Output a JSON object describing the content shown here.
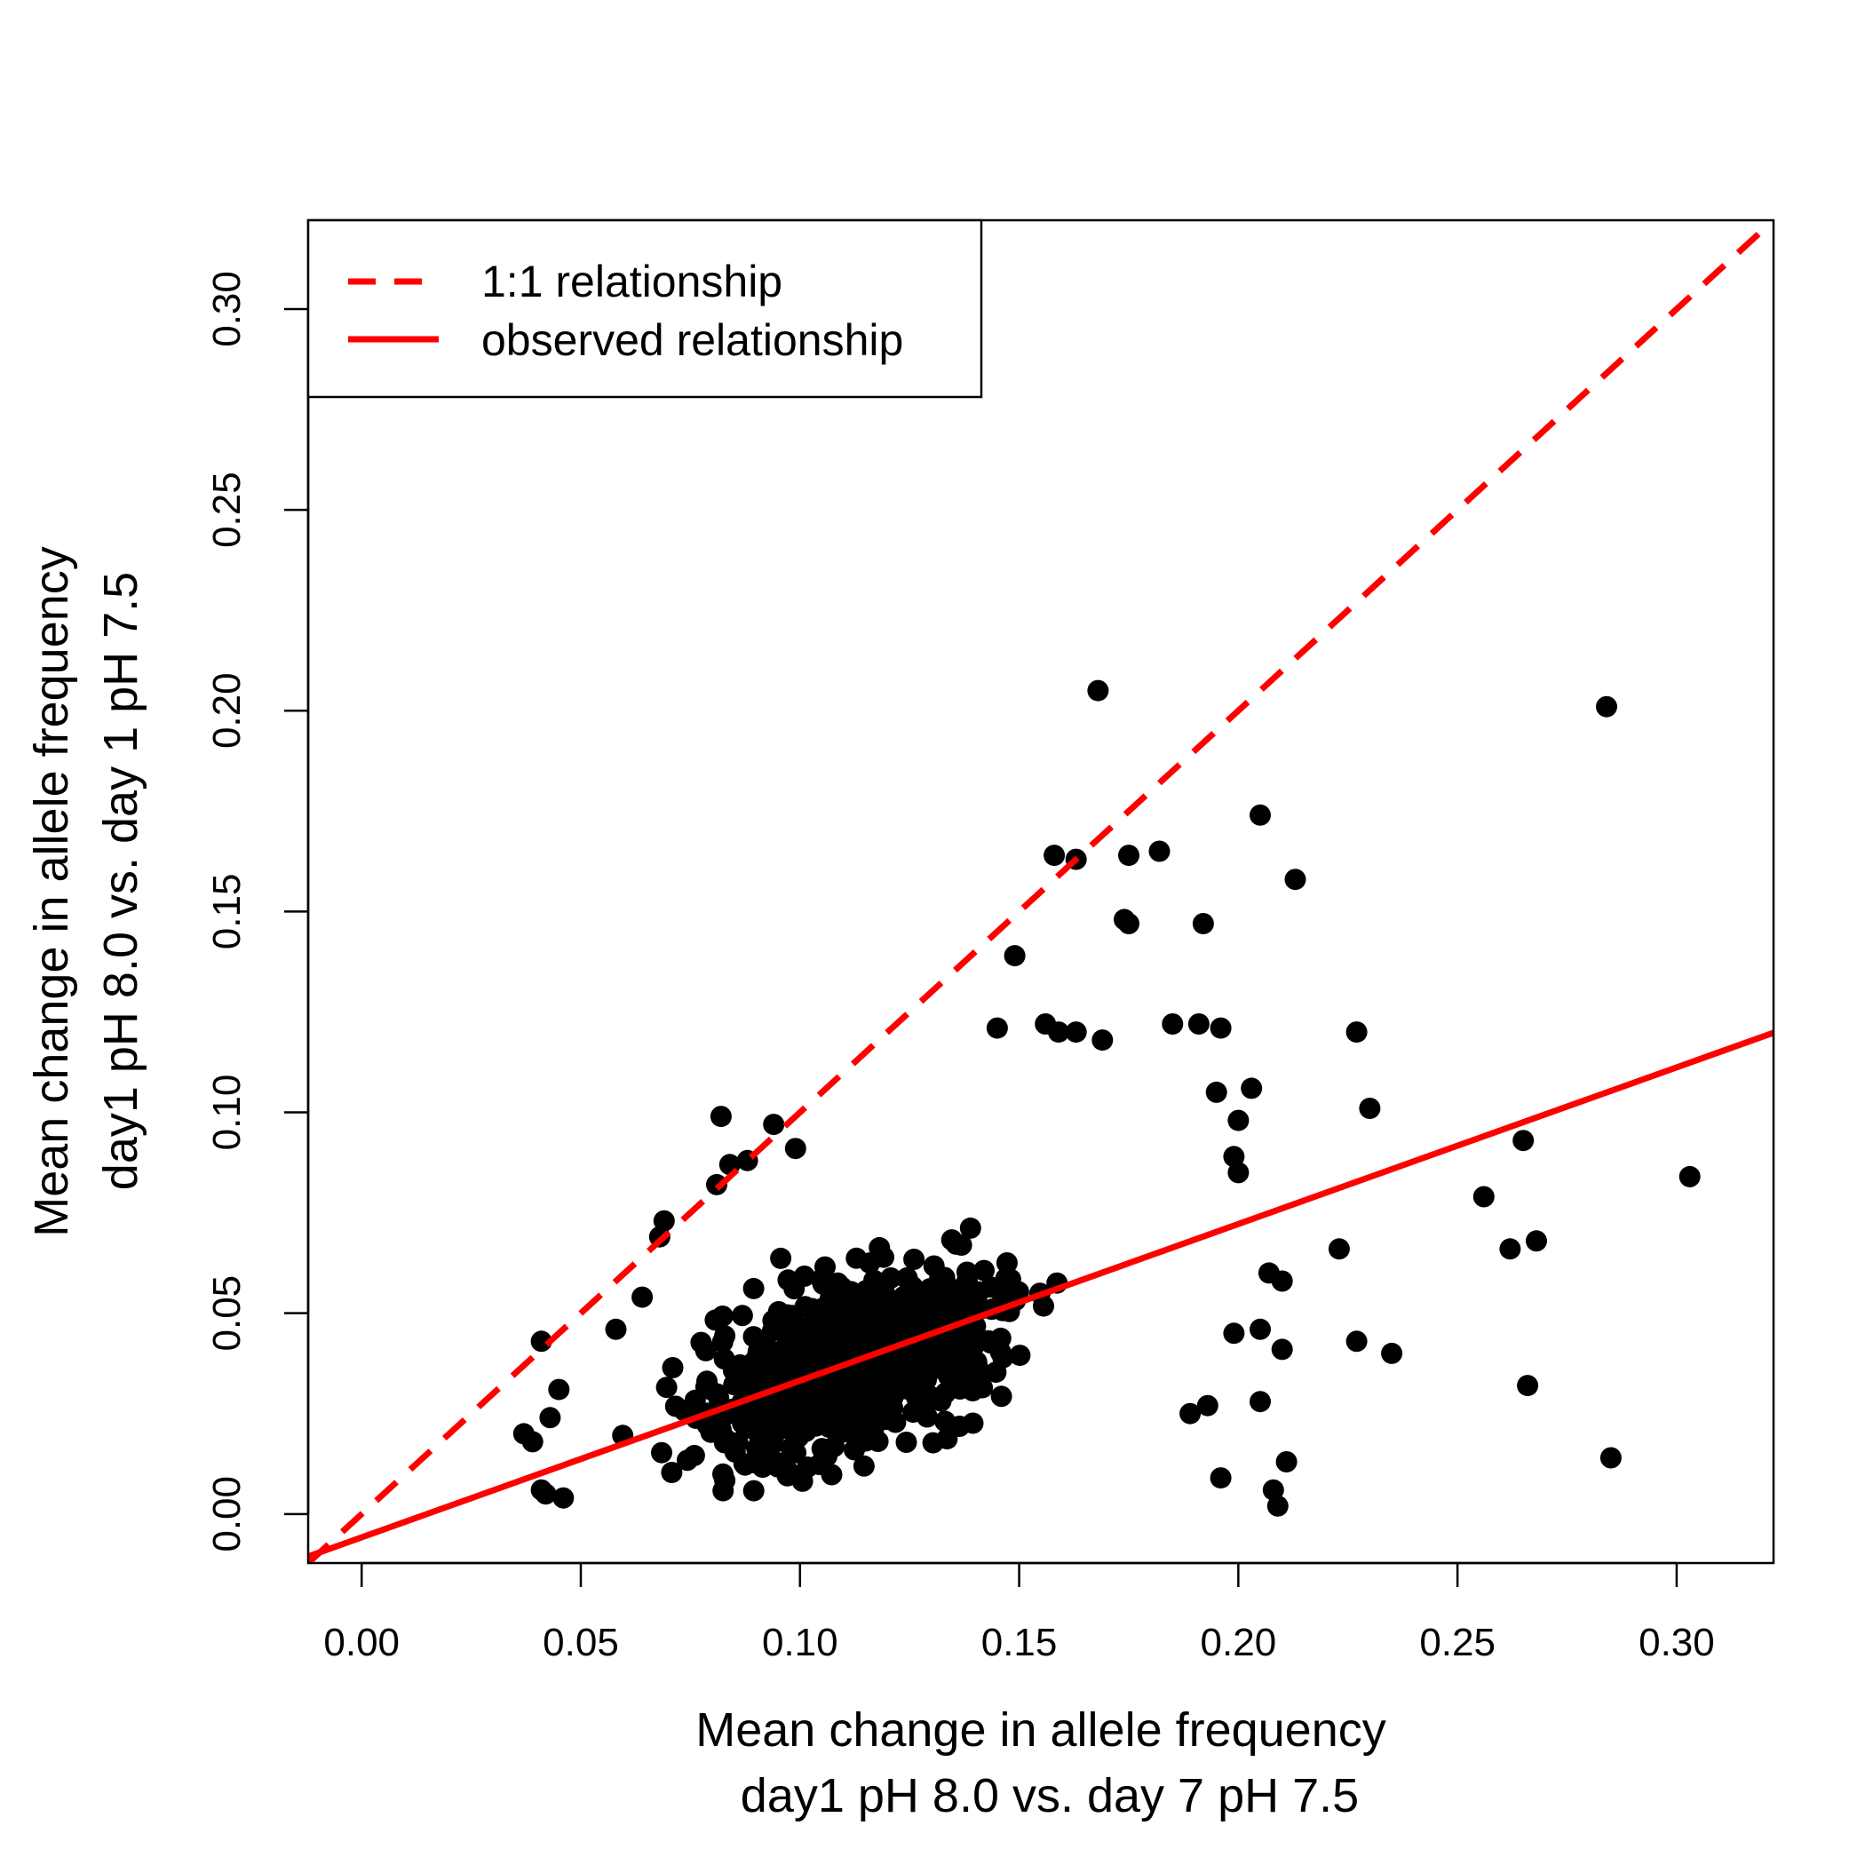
{
  "chart_data": {
    "type": "scatter",
    "title": "",
    "xlabel": [
      "Mean change in allele frequency",
      "day1 pH 8.0 vs. day 7 pH 7.5"
    ],
    "ylabel": [
      "Mean change in allele frequency",
      "day1 pH 8.0 vs. day 1 pH 7.5"
    ],
    "xlim": [
      -0.0122,
      0.3221
    ],
    "ylim": [
      -0.0122,
      0.3221
    ],
    "xticks": [
      0.0,
      0.05,
      0.1,
      0.15,
      0.2,
      0.25,
      0.3
    ],
    "yticks": [
      0.0,
      0.05,
      0.1,
      0.15,
      0.2,
      0.25,
      0.3
    ],
    "tick_labels": [
      "0.00",
      "0.05",
      "0.10",
      "0.15",
      "0.20",
      "0.25",
      "0.30"
    ],
    "grid": false,
    "legend_position": "top-left",
    "colors": {
      "points": "#000000",
      "lines": "#ff0000",
      "frame": "#000000"
    },
    "lines": [
      {
        "name": "1:1 relationship",
        "style": "dashed",
        "intercept": 0.0,
        "slope": 1.0
      },
      {
        "name": "observed relationship",
        "style": "solid",
        "intercept": -0.0058,
        "slope": 0.39
      }
    ],
    "outlier_points": [
      [
        0.168,
        0.205
      ],
      [
        0.284,
        0.201
      ],
      [
        0.205,
        0.174
      ],
      [
        0.213,
        0.158
      ],
      [
        0.158,
        0.164
      ],
      [
        0.163,
        0.163
      ],
      [
        0.175,
        0.164
      ],
      [
        0.182,
        0.165
      ],
      [
        0.174,
        0.148
      ],
      [
        0.175,
        0.147
      ],
      [
        0.192,
        0.147
      ],
      [
        0.149,
        0.139
      ],
      [
        0.145,
        0.121
      ],
      [
        0.156,
        0.122
      ],
      [
        0.159,
        0.12
      ],
      [
        0.163,
        0.12
      ],
      [
        0.169,
        0.118
      ],
      [
        0.185,
        0.122
      ],
      [
        0.191,
        0.122
      ],
      [
        0.196,
        0.121
      ],
      [
        0.227,
        0.12
      ],
      [
        0.23,
        0.101
      ],
      [
        0.203,
        0.106
      ],
      [
        0.195,
        0.105
      ],
      [
        0.082,
        0.099
      ],
      [
        0.094,
        0.097
      ],
      [
        0.099,
        0.091
      ],
      [
        0.084,
        0.087
      ],
      [
        0.088,
        0.088
      ],
      [
        0.081,
        0.082
      ],
      [
        0.265,
        0.093
      ],
      [
        0.256,
        0.079
      ],
      [
        0.303,
        0.084
      ],
      [
        0.262,
        0.066
      ],
      [
        0.268,
        0.068
      ],
      [
        0.223,
        0.066
      ],
      [
        0.2,
        0.098
      ],
      [
        0.199,
        0.089
      ],
      [
        0.2,
        0.085
      ],
      [
        0.207,
        0.06
      ],
      [
        0.21,
        0.058
      ],
      [
        0.199,
        0.045
      ],
      [
        0.205,
        0.046
      ],
      [
        0.21,
        0.041
      ],
      [
        0.227,
        0.043
      ],
      [
        0.235,
        0.04
      ],
      [
        0.266,
        0.032
      ],
      [
        0.285,
        0.014
      ],
      [
        0.205,
        0.028
      ],
      [
        0.211,
        0.013
      ],
      [
        0.208,
        0.006
      ],
      [
        0.209,
        0.002
      ],
      [
        0.196,
        0.009
      ],
      [
        0.193,
        0.027
      ],
      [
        0.189,
        0.025
      ],
      [
        0.041,
        0.043
      ],
      [
        0.058,
        0.046
      ],
      [
        0.069,
        0.073
      ],
      [
        0.068,
        0.069
      ],
      [
        0.064,
        0.054
      ],
      [
        0.045,
        0.031
      ],
      [
        0.043,
        0.024
      ],
      [
        0.037,
        0.02
      ],
      [
        0.039,
        0.018
      ],
      [
        0.041,
        0.006
      ],
      [
        0.042,
        0.005
      ],
      [
        0.046,
        0.004
      ]
    ],
    "cluster_summary": {
      "approx_point_count": 760,
      "x_mean": 0.112,
      "x_sd": 0.033,
      "x_min": 0.036,
      "x_max": 0.195,
      "y_formula_intercept": 0.0005,
      "y_formula_slope": 0.34,
      "y_noise_sd": 0.02,
      "y_min": 0.0,
      "y_max": 0.124
    }
  },
  "legend": {
    "items": [
      {
        "label": "1:1 relationship",
        "style": "dashed"
      },
      {
        "label": "observed relationship",
        "style": "solid"
      }
    ]
  }
}
